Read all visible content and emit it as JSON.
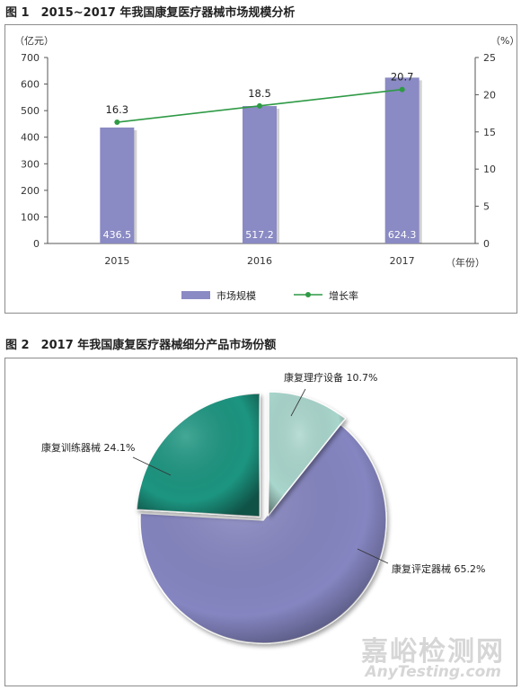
{
  "figure1": {
    "title": "图 1　2015~2017 年我国康复医疗器械市场规模分析",
    "left_unit": "（亿元）",
    "right_unit": "（%）",
    "x_unit": "（年份）",
    "legend": {
      "bar": "市场规模",
      "line": "增长率"
    }
  },
  "figure2": {
    "title": "图 2　2017 年我国康复医疗器械细分产品市场份额"
  },
  "watermark": {
    "cn": "嘉峪检测网",
    "en": "AnyTesting.com"
  },
  "chart_data": [
    {
      "type": "bar",
      "categories": [
        "2015",
        "2016",
        "2017"
      ],
      "series": [
        {
          "name": "市场规模",
          "type": "bar",
          "axis": "left",
          "values": [
            436.5,
            517.2,
            624.3
          ],
          "labels": [
            "436.5",
            "517.2",
            "624.3"
          ],
          "color": "#8a8ac4"
        },
        {
          "name": "增长率",
          "type": "line",
          "axis": "right",
          "values": [
            16.3,
            18.5,
            20.7
          ],
          "labels": [
            "16.3",
            "18.5",
            "20.7"
          ],
          "color": "#2e9a45"
        }
      ],
      "ylim_left": [
        0,
        700
      ],
      "yticks_left": [
        "0",
        "100",
        "200",
        "300",
        "400",
        "500",
        "600",
        "700"
      ],
      "ylim_right": [
        0,
        25
      ],
      "yticks_right": [
        "0",
        "5",
        "10",
        "15",
        "20",
        "25"
      ],
      "grid": false,
      "legend_position": "bottom"
    },
    {
      "type": "pie",
      "slices": [
        {
          "label": "康复评定器械 65.2%",
          "value": 65.2,
          "color": "#8585c1"
        },
        {
          "label": "康复训练器械 24.1%",
          "value": 24.1,
          "color": "#1f9580"
        },
        {
          "label": "康复理疗设备 10.7%",
          "value": 10.7,
          "color": "#a9d6cc"
        }
      ]
    }
  ]
}
